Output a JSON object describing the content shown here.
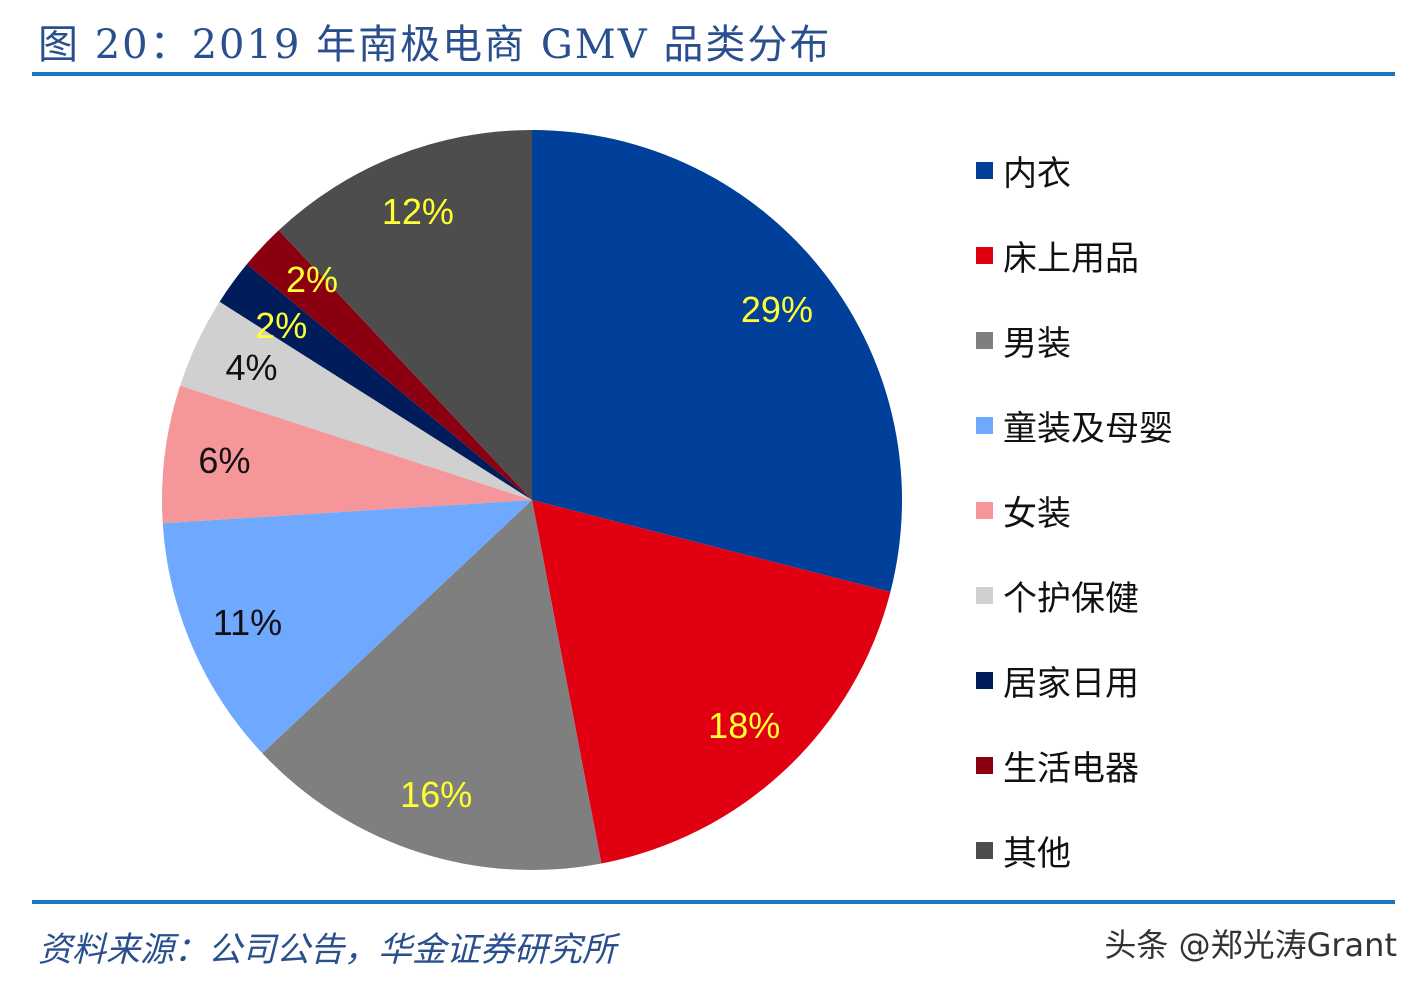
{
  "title": "图 20：2019 年南极电商 GMV 品类分布",
  "source": "资料来源：公司公告，华金证券研究所",
  "watermark": "头条 @郑光涛Grant",
  "chart_data": {
    "type": "pie",
    "title": "图 20：2019 年南极电商 GMV 品类分布",
    "start": "12 o'clock, clockwise",
    "legend_position": "right",
    "categories": [
      "内衣",
      "床上用品",
      "男装",
      "童装及母婴",
      "女装",
      "个护保健",
      "居家日用",
      "生活电器",
      "其他"
    ],
    "values": [
      29,
      18,
      16,
      11,
      6,
      4,
      2,
      2,
      12
    ],
    "labels": [
      "29%",
      "18%",
      "16%",
      "11%",
      "6%",
      "4%",
      "2%",
      "2%",
      "12%"
    ],
    "colors": [
      "#003f9a",
      "#e00012",
      "#7f7f7f",
      "#6fa8ff",
      "#f4969a",
      "#d0d0d0",
      "#001c5a",
      "#8b0010",
      "#4d4d4d"
    ],
    "label_colors": [
      "#ffff33",
      "#ffff33",
      "#ffff33",
      "#111111",
      "#111111",
      "#111111",
      "#ffff33",
      "#ffff33",
      "#ffff33"
    ]
  }
}
